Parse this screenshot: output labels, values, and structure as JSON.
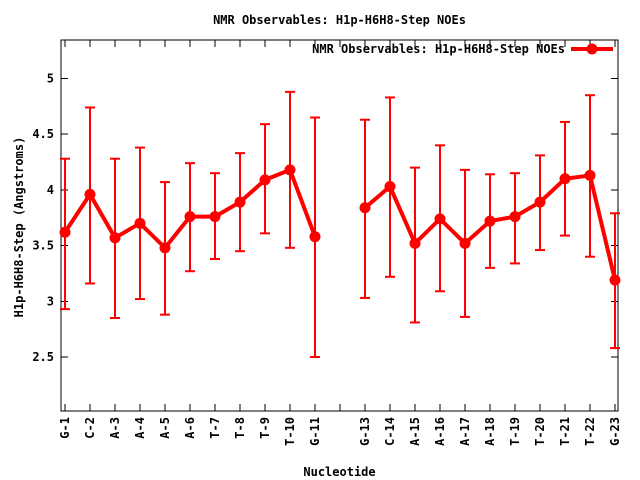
{
  "chart_data": {
    "type": "line",
    "title": "NMR Observables: H1p-H6H8-Step NOEs",
    "legend": {
      "label": "NMR Observables: H1p-H6H8-Step NOEs",
      "position": "top-right-inside",
      "marker": "filled-circle-on-line"
    },
    "xlabel": "Nucleotide",
    "ylabel": "H1p-H6H8-Step (Angstroms)",
    "series_color": "#ff0000",
    "axis_color": "#000000",
    "background_color": "#ffffff",
    "grid": false,
    "error_bars": true,
    "ylim": [
      2.0,
      5.33
    ],
    "yticks": [
      2.5,
      3,
      3.5,
      4,
      4.5,
      5
    ],
    "ytick_labels": [
      "2.5",
      "3",
      "3.5",
      "4",
      "4.5",
      "5"
    ],
    "x_positions_ticked_unlabeled": [
      12
    ],
    "points": [
      {
        "label": "G-1",
        "pos": 1,
        "y": 3.62,
        "ylow": 2.93,
        "yhigh": 4.28
      },
      {
        "label": "C-2",
        "pos": 2,
        "y": 3.96,
        "ylow": 3.16,
        "yhigh": 4.74
      },
      {
        "label": "A-3",
        "pos": 3,
        "y": 3.57,
        "ylow": 2.85,
        "yhigh": 4.28
      },
      {
        "label": "A-4",
        "pos": 4,
        "y": 3.7,
        "ylow": 3.02,
        "yhigh": 4.38
      },
      {
        "label": "A-5",
        "pos": 5,
        "y": 3.48,
        "ylow": 2.88,
        "yhigh": 4.07
      },
      {
        "label": "A-6",
        "pos": 6,
        "y": 3.76,
        "ylow": 3.27,
        "yhigh": 4.24
      },
      {
        "label": "T-7",
        "pos": 7,
        "y": 3.76,
        "ylow": 3.38,
        "yhigh": 4.15
      },
      {
        "label": "T-8",
        "pos": 8,
        "y": 3.89,
        "ylow": 3.45,
        "yhigh": 4.33
      },
      {
        "label": "T-9",
        "pos": 9,
        "y": 4.09,
        "ylow": 3.61,
        "yhigh": 4.59
      },
      {
        "label": "T-10",
        "pos": 10,
        "y": 4.18,
        "ylow": 3.48,
        "yhigh": 4.88
      },
      {
        "label": "G-11",
        "pos": 11,
        "y": 3.58,
        "ylow": 2.5,
        "yhigh": 4.65
      },
      {
        "label": "G-13",
        "pos": 13,
        "y": 3.84,
        "ylow": 3.03,
        "yhigh": 4.63
      },
      {
        "label": "C-14",
        "pos": 14,
        "y": 4.03,
        "ylow": 3.22,
        "yhigh": 4.83
      },
      {
        "label": "A-15",
        "pos": 15,
        "y": 3.52,
        "ylow": 2.81,
        "yhigh": 4.2
      },
      {
        "label": "A-16",
        "pos": 16,
        "y": 3.74,
        "ylow": 3.09,
        "yhigh": 4.4
      },
      {
        "label": "A-17",
        "pos": 17,
        "y": 3.52,
        "ylow": 2.86,
        "yhigh": 4.18
      },
      {
        "label": "A-18",
        "pos": 18,
        "y": 3.72,
        "ylow": 3.3,
        "yhigh": 4.14
      },
      {
        "label": "T-19",
        "pos": 19,
        "y": 3.76,
        "ylow": 3.34,
        "yhigh": 4.15
      },
      {
        "label": "T-20",
        "pos": 20,
        "y": 3.89,
        "ylow": 3.46,
        "yhigh": 4.31
      },
      {
        "label": "T-21",
        "pos": 21,
        "y": 4.1,
        "ylow": 3.59,
        "yhigh": 4.61
      },
      {
        "label": "T-22",
        "pos": 22,
        "y": 4.13,
        "ylow": 3.4,
        "yhigh": 4.85
      },
      {
        "label": "G-23",
        "pos": 23,
        "y": 3.19,
        "ylow": 2.58,
        "yhigh": 3.79
      }
    ]
  }
}
